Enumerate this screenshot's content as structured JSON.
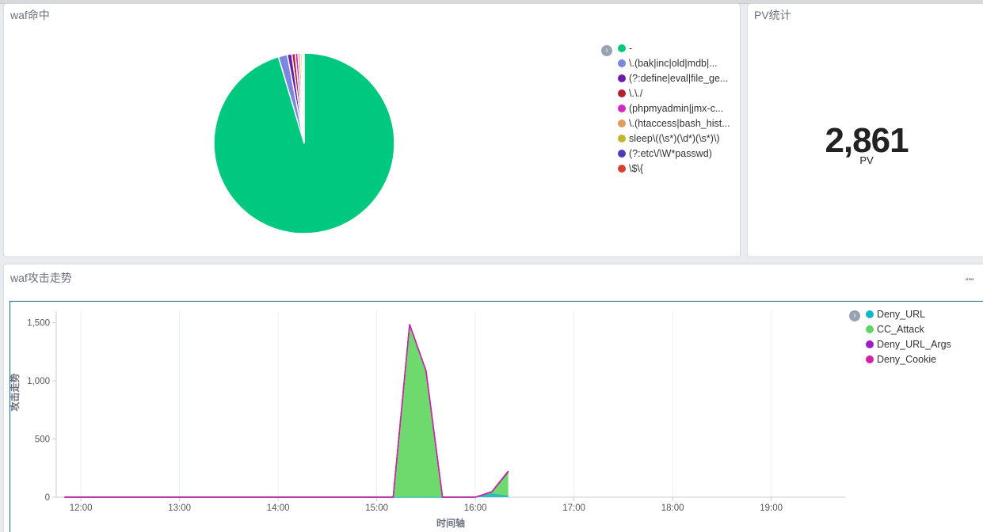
{
  "pie_panel": {
    "title": "waf命中",
    "legend": [
      {
        "label": "-",
        "color": "#00c97f"
      },
      {
        "label": "\\.(bak|inc|old|mdb|...",
        "color": "#7b86e0"
      },
      {
        "label": "(?:define|eval|file_ge...",
        "color": "#6a1dab"
      },
      {
        "label": "\\.\\./",
        "color": "#b0212b"
      },
      {
        "label": "(phpmyadmin|jmx-c...",
        "color": "#d12ac0"
      },
      {
        "label": "\\.(htaccess|bash_hist...",
        "color": "#e39b5a"
      },
      {
        "label": "sleep\\((\\s*)(\\d*)(\\s*)\\)",
        "color": "#c2b52e"
      },
      {
        "label": "(?:etc\\/\\W*passwd)",
        "color": "#4b3db8"
      },
      {
        "label": "\\$\\{",
        "color": "#d6402f"
      }
    ]
  },
  "pv_panel": {
    "title": "PV统计",
    "value": "2,861",
    "label": "PV"
  },
  "trend_panel": {
    "title": "waf攻击走势",
    "menu_label": "▫▫▫"
  },
  "chart_data": [
    {
      "type": "pie",
      "title": "waf命中",
      "slices": [
        {
          "name": "-",
          "value": 95.4,
          "color": "#00c97f"
        },
        {
          "name": "\\.(bak|inc|old|mdb|...",
          "value": 1.6,
          "color": "#7b86e0"
        },
        {
          "name": "(?:define|eval|file_ge...",
          "value": 0.8,
          "color": "#6a1dab"
        },
        {
          "name": "\\.\\./",
          "value": 0.6,
          "color": "#b0212b"
        },
        {
          "name": "(phpmyadmin|jmx-c...",
          "value": 0.5,
          "color": "#d12ac0"
        },
        {
          "name": "\\.(htaccess|bash_hist...",
          "value": 0.4,
          "color": "#e39b5a"
        },
        {
          "name": "sleep\\((\\s*)(\\d*)(\\s*)\\)",
          "value": 0.3,
          "color": "#c2b52e"
        },
        {
          "name": "(?:etc\\/\\W*passwd)",
          "value": 0.2,
          "color": "#4b3db8"
        },
        {
          "name": "\\$\\{",
          "value": 0.2,
          "color": "#d6402f"
        }
      ]
    },
    {
      "type": "area",
      "stacked": true,
      "xlabel": "时间轴",
      "ylabel": "攻击走势",
      "xlim": [
        "11:45",
        "19:45"
      ],
      "ylim": [
        0,
        1600
      ],
      "x_ticks": [
        "12:00",
        "13:00",
        "14:00",
        "15:00",
        "16:00",
        "17:00",
        "18:00",
        "19:00"
      ],
      "y_ticks": [
        0,
        500,
        1000,
        1500
      ],
      "y_tick_labels": [
        "0",
        "500",
        "1,000",
        "1,500"
      ],
      "grid": true,
      "legend_position": "top-right",
      "x": [
        "11:50",
        "15:10",
        "15:20",
        "15:30",
        "15:40",
        "16:00",
        "16:10",
        "16:20"
      ],
      "series": [
        {
          "name": "Deny_URL",
          "color": "#12b6c8",
          "values": [
            0,
            0,
            0,
            0,
            0,
            0,
            30,
            10
          ]
        },
        {
          "name": "CC_Attack",
          "color": "#5ed65e",
          "values": [
            0,
            0,
            1480,
            1080,
            0,
            0,
            10,
            200
          ]
        },
        {
          "name": "Deny_URL_Args",
          "color": "#9c1fc4",
          "values": [
            0,
            0,
            5,
            5,
            0,
            0,
            5,
            10
          ]
        },
        {
          "name": "Deny_Cookie",
          "color": "#d41fa8",
          "values": [
            0,
            0,
            2,
            2,
            0,
            0,
            2,
            5
          ]
        }
      ]
    }
  ]
}
